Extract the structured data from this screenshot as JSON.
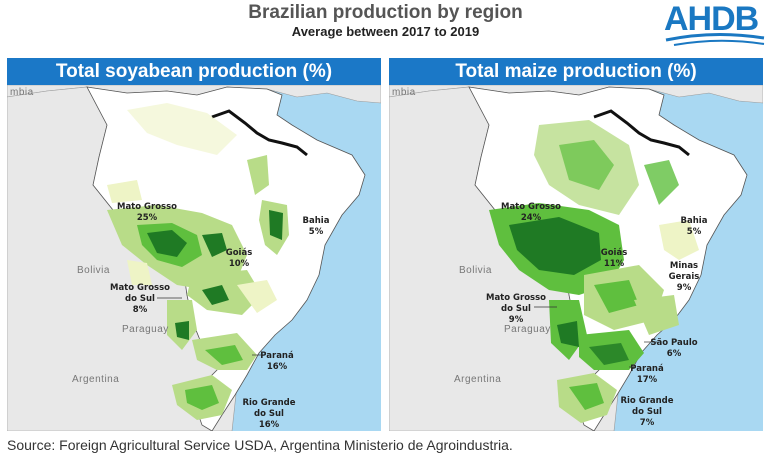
{
  "header": {
    "title": "Brazilian production by region",
    "subtitle": "Average between 2017 to 2019",
    "logo": "AHDB"
  },
  "colors": {
    "header_bar": "#1b78c7",
    "ocean": "#a9d8f2",
    "neighbour_land": "#e8e8e8",
    "brazil_base": "#ffffff",
    "shade_low": "#eef4c6",
    "shade_mid": "#b8dc88",
    "shade_high": "#5fbf3e",
    "shade_top": "#1f7a24",
    "logo": "#1a78c2"
  },
  "panels": {
    "soy": {
      "title": "Total soyabean production (%)",
      "countries": [
        "Bolivia",
        "Paraguay",
        "Argentina",
        "mbia"
      ],
      "regions": [
        {
          "name": "Mato Grosso",
          "share": "25%"
        },
        {
          "name": "Goiás",
          "share": "10%"
        },
        {
          "name": "Bahia",
          "share": "5%"
        },
        {
          "name": "Mato Grosso do Sul",
          "name_line1": "Mato Grosso",
          "name_line2": "do Sul",
          "share": "8%"
        },
        {
          "name": "Paraná",
          "share": "16%"
        },
        {
          "name": "Rio Grande do Sul",
          "name_line1": "Rio Grande",
          "name_line2": "do Sul",
          "share": "16%"
        }
      ]
    },
    "maize": {
      "title": "Total maize production (%)",
      "countries": [
        "Bolivia",
        "Paraguay",
        "Argentina",
        "mbia"
      ],
      "regions": [
        {
          "name": "Mato Grosso",
          "share": "24%"
        },
        {
          "name": "Goiás",
          "share": "11%"
        },
        {
          "name": "Bahia",
          "share": "5%"
        },
        {
          "name": "Minas Gerais",
          "name_line1": "Minas",
          "name_line2": "Gerais",
          "share": "9%"
        },
        {
          "name": "Mato Grosso do Sul",
          "name_line1": "Mato Grosso",
          "name_line2": "do Sul",
          "share": "9%"
        },
        {
          "name": "São Paulo",
          "share": "6%"
        },
        {
          "name": "Paraná",
          "share": "17%"
        },
        {
          "name": "Rio Grande do Sul",
          "name_line1": "Rio Grande",
          "name_line2": "do Sul",
          "share": "7%"
        }
      ]
    }
  },
  "source": "Source: Foreign Agricultural Service USDA, Argentina Ministerio de Agroindustria."
}
